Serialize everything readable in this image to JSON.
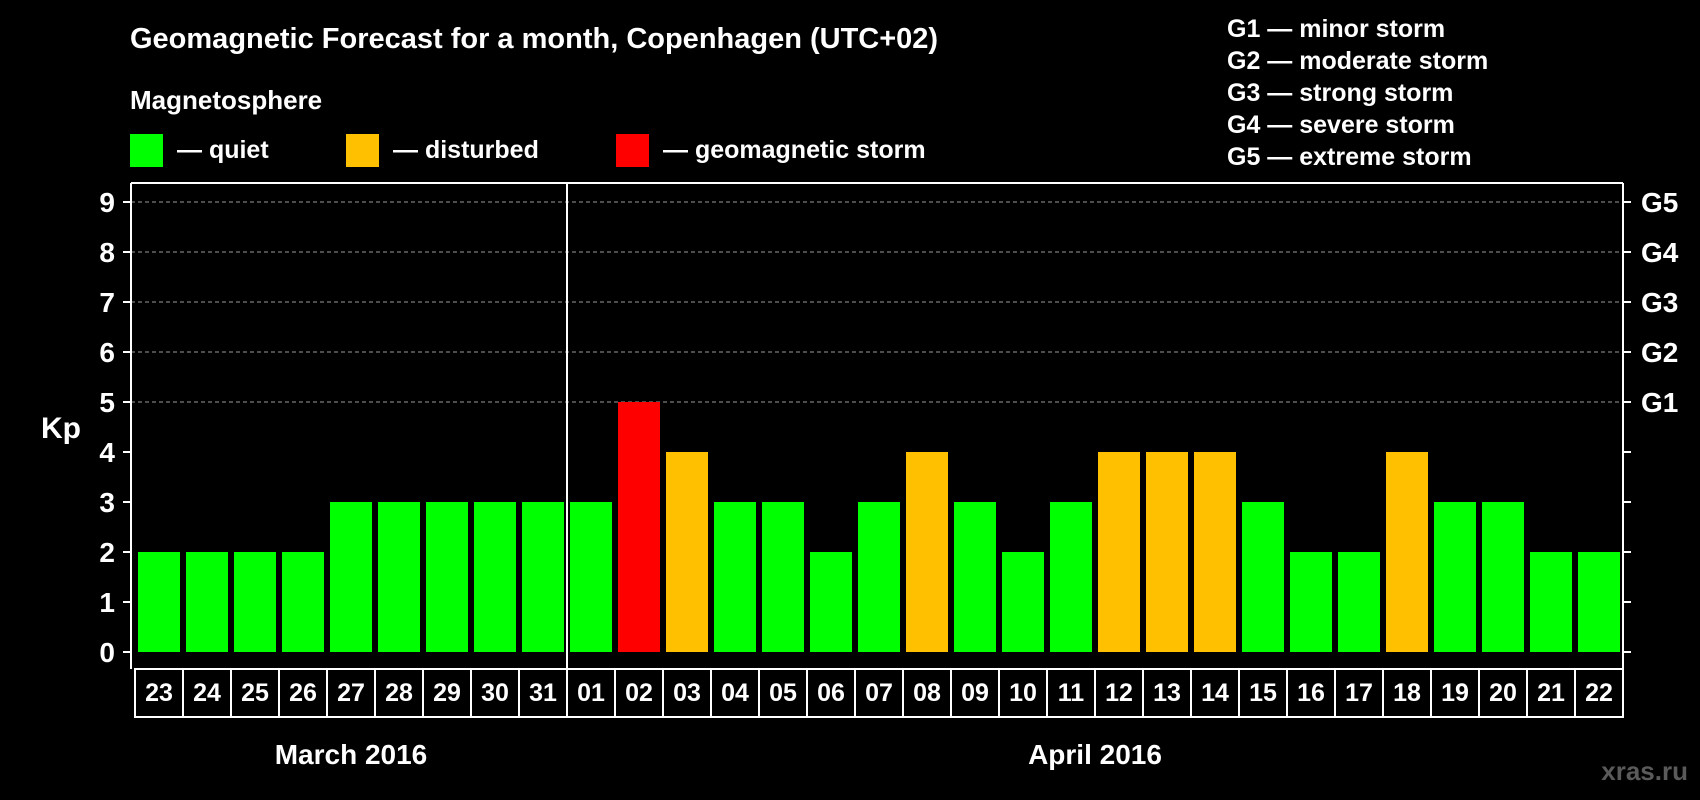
{
  "header": {
    "title": "Geomagnetic Forecast for a month, Copenhagen (UTC+02)",
    "subtitle": "Magnetosphere"
  },
  "legend": [
    {
      "label": "— quiet",
      "color": "#00ff00"
    },
    {
      "label": "— disturbed",
      "color": "#ffc000"
    },
    {
      "label": "— geomagnetic storm",
      "color": "#ff0000"
    }
  ],
  "storm_levels": [
    "G1 — minor storm",
    "G2 — moderate storm",
    "G3 — strong storm",
    "G4 — severe storm",
    "G5 — extreme storm"
  ],
  "watermark": "xras.ru",
  "chart_data": {
    "type": "bar",
    "title": "Geomagnetic Forecast for a month, Copenhagen (UTC+02)",
    "ylabel": "Kp",
    "ylim": [
      0,
      9
    ],
    "yticks": [
      "0",
      "1",
      "2",
      "3",
      "4",
      "5",
      "6",
      "7",
      "8",
      "9"
    ],
    "right_ticks": [
      {
        "kp": 5,
        "label": "G1"
      },
      {
        "kp": 6,
        "label": "G2"
      },
      {
        "kp": 7,
        "label": "G3"
      },
      {
        "kp": 8,
        "label": "G4"
      },
      {
        "kp": 9,
        "label": "G5"
      }
    ],
    "gridlines": [
      5,
      6,
      7,
      8,
      9
    ],
    "categories": [
      "23",
      "24",
      "25",
      "26",
      "27",
      "28",
      "29",
      "30",
      "31",
      "01",
      "02",
      "03",
      "04",
      "05",
      "06",
      "07",
      "08",
      "09",
      "10",
      "11",
      "12",
      "13",
      "14",
      "15",
      "16",
      "17",
      "18",
      "19",
      "20",
      "21",
      "22"
    ],
    "values": [
      2,
      2,
      2,
      2,
      3,
      3,
      3,
      3,
      3,
      3,
      5,
      4,
      3,
      3,
      2,
      3,
      4,
      3,
      2,
      3,
      4,
      4,
      4,
      3,
      2,
      2,
      4,
      3,
      3,
      2,
      2
    ],
    "status_colors": {
      "quiet": "#00ff00",
      "disturbed": "#ffc000",
      "storm": "#ff0000"
    },
    "months": [
      {
        "label": "March 2016",
        "first_index": 0,
        "last_index": 8
      },
      {
        "label": "April 2016",
        "first_index": 9,
        "last_index": 30
      }
    ]
  }
}
